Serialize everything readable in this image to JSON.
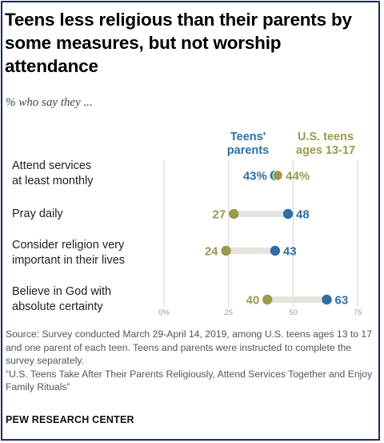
{
  "title": "Teens less religious than their parents by some measures, but not worship attendance",
  "subtitle": "% who say they ...",
  "colors": {
    "parents": "#2f6fa3",
    "teens": "#9b9a4f",
    "connector": "#e4e4df",
    "grid": "#d4d4d4"
  },
  "chart_data": {
    "type": "dot",
    "title": "Teens less religious than their parents by some measures, but not worship attendance",
    "subtitle": "% who say they ...",
    "categories": [
      "Attend services at least monthly",
      "Pray daily",
      "Consider religion very important in their lives",
      "Believe in God with absolute certainty"
    ],
    "series": [
      {
        "name": "Teens' parents",
        "values": [
          43,
          48,
          43,
          63
        ],
        "color": "#2f6fa3"
      },
      {
        "name": "U.S. teens ages 13-17",
        "values": [
          44,
          27,
          24,
          40
        ],
        "color": "#9b9a4f"
      }
    ],
    "data_labels": [
      {
        "parents": "43%",
        "teens": "44%"
      },
      {
        "parents": "48",
        "teens": "27"
      },
      {
        "parents": "43",
        "teens": "24"
      },
      {
        "parents": "63",
        "teens": "40"
      }
    ],
    "x_ticks": [
      "0%",
      "25",
      "50",
      "75"
    ],
    "xlim": [
      0,
      75
    ],
    "grid": true,
    "legend": "top"
  },
  "legend": {
    "parents": "Teens'\nparents",
    "teens": "U.S. teens\nages 13-17"
  },
  "rows": [
    {
      "label": "Attend services\nat least monthly"
    },
    {
      "label": "Pray daily"
    },
    {
      "label": "Consider religion very\nimportant in their lives"
    },
    {
      "label": "Believe in God with\nabsolute certainty"
    }
  ],
  "source": "Source: Survey conducted March 29-April 14, 2019, among U.S. teens ages 13 to 17 and one parent of each teen. Teens and parents were instructed to complete the survey separately.\n“U.S. Teens Take After Their Parents Religiously, Attend Services Together and Enjoy Family Rituals”",
  "brand": "PEW RESEARCH CENTER"
}
